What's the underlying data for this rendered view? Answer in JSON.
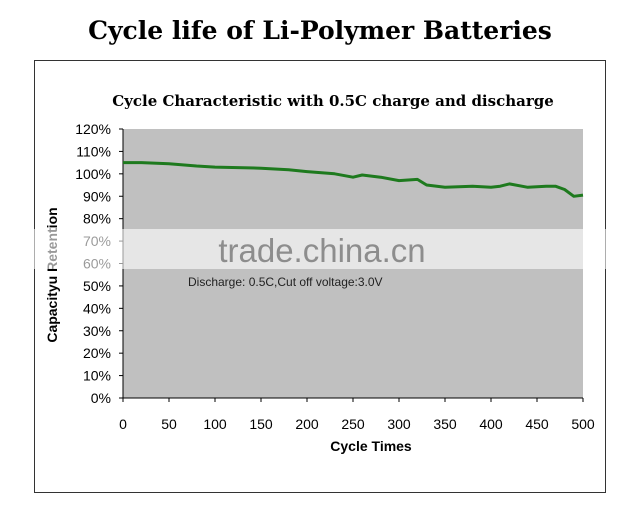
{
  "page_title": "Cycle life of Li-Polymer Batteries",
  "watermark": "trade.china.cn",
  "chart_data": {
    "type": "line",
    "title": "Cycle Characteristic with 0.5C charge and discharge",
    "xlabel": "Cycle Times",
    "ylabel": "Capacityu Retention",
    "xlim": [
      0,
      500
    ],
    "ylim": [
      0,
      120
    ],
    "xticks": [
      "0",
      "50",
      "100",
      "150",
      "200",
      "250",
      "300",
      "350",
      "400",
      "450",
      "500"
    ],
    "yticks": [
      "0%",
      "10%",
      "20%",
      "30%",
      "40%",
      "50%",
      "60%",
      "70%",
      "80%",
      "90%",
      "100%",
      "110%",
      "120%"
    ],
    "annotation": "Discharge: 0.5C,Cut off voltage:3.0V",
    "grid": false,
    "plot_background": "#c0c0c0",
    "series": [
      {
        "color": "#1e7a1e",
        "x": [
          0,
          20,
          50,
          80,
          100,
          150,
          180,
          200,
          230,
          250,
          260,
          280,
          300,
          320,
          330,
          350,
          380,
          400,
          410,
          420,
          440,
          460,
          470,
          480,
          490,
          500
        ],
        "y": [
          105,
          105,
          104.5,
          103.5,
          103,
          102.5,
          101.8,
          101,
          100,
          98.5,
          99.5,
          98.5,
          97,
          97.5,
          95,
          94,
          94.5,
          94,
          94.5,
          95.5,
          94,
          94.5,
          94.5,
          93,
          90,
          90.5
        ]
      }
    ]
  }
}
